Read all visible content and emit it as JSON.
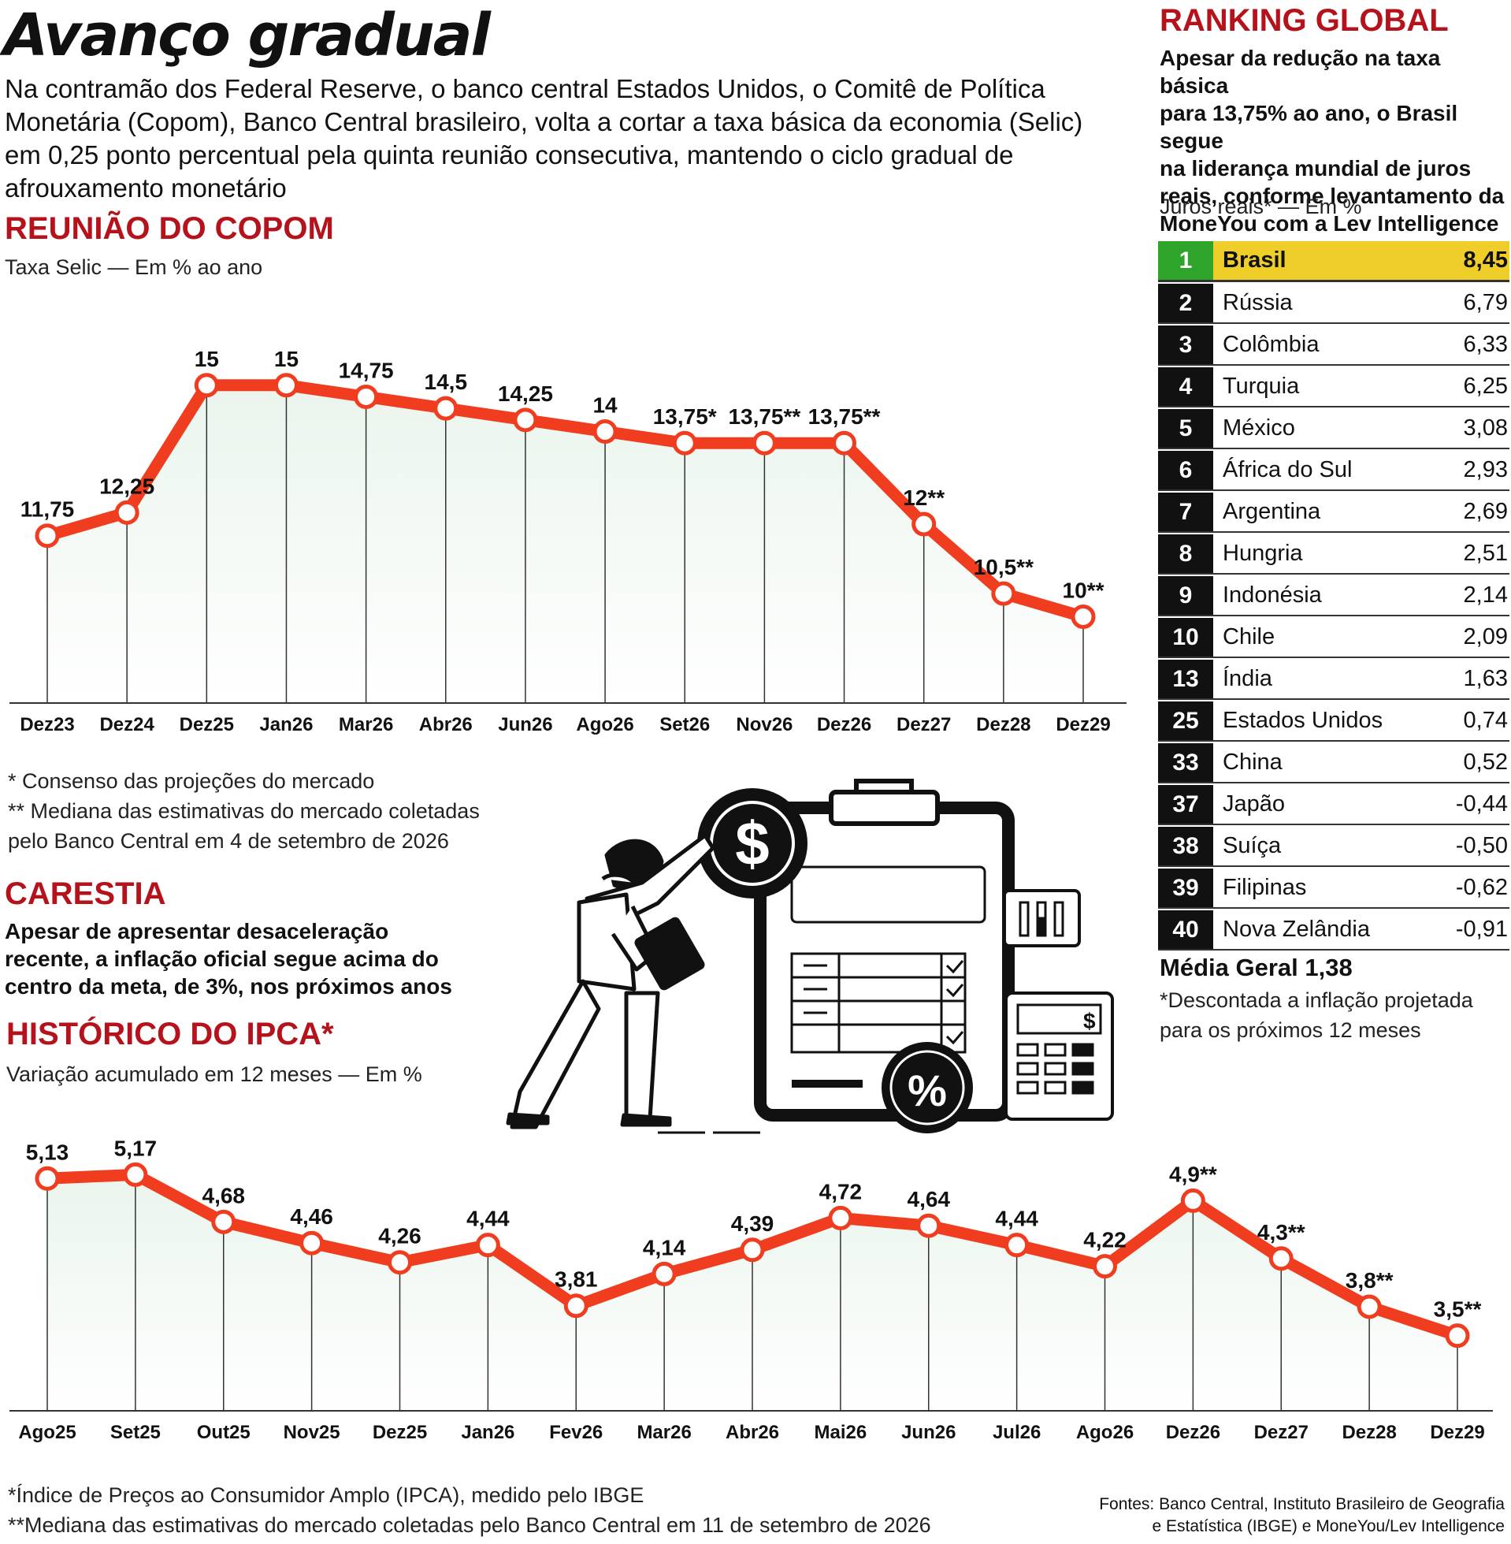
{
  "header": {
    "title": "Avanço gradual",
    "intro": "Na contramão dos Federal Reserve, o banco central Estados Unidos, o Comitê de Política Monetária (Copom), Banco Central brasileiro, volta a cortar a taxa básica da economia (Selic) em 0,25 ponto percentual pela quinta reunião consecutiva, mantendo o ciclo gradual de afrouxamento monetário"
  },
  "copom": {
    "title": "REUNIÃO DO COPOM",
    "subtitle": "Taxa Selic — Em % ao ano",
    "note1": "* Consenso das projeções do mercado",
    "note2": "** Mediana das estimativas do mercado coletadas",
    "note3": "pelo Banco Central em 4 de setembro de 2026"
  },
  "carestia": {
    "title": "CARESTIA",
    "text1": "Apesar de apresentar desaceleração",
    "text2": "recente, a inflação oficial segue acima do",
    "text3": "centro da meta, de 3%, nos próximos anos"
  },
  "ipca": {
    "title": "HISTÓRICO DO IPCA*",
    "subtitle": "Variação acumulado em 12 meses — Em %",
    "note1": "*Índice de Preços ao Consumidor Amplo (IPCA), medido pelo IBGE",
    "note2": "**Mediana das estimativas do mercado coletadas pelo Banco Central em 11 de setembro de 2026"
  },
  "ranking": {
    "title": "RANKING GLOBAL",
    "desc1": "Apesar da redução na taxa básica",
    "desc2": "para 13,75% ao ano, o Brasil segue",
    "desc3": "na liderança mundial de juros",
    "desc4": "reais, conforme levantamento da",
    "desc5": "MoneYou com a Lev Intelligence",
    "subtitle": "Juros reais* — Em %",
    "rows": [
      {
        "rank": "1",
        "country": "Brasil",
        "value": "8,45"
      },
      {
        "rank": "2",
        "country": "Rússia",
        "value": "6,79"
      },
      {
        "rank": "3",
        "country": "Colômbia",
        "value": "6,33"
      },
      {
        "rank": "4",
        "country": "Turquia",
        "value": "6,25"
      },
      {
        "rank": "5",
        "country": "México",
        "value": "3,08"
      },
      {
        "rank": "6",
        "country": "África do Sul",
        "value": "2,93"
      },
      {
        "rank": "7",
        "country": "Argentina",
        "value": "2,69"
      },
      {
        "rank": "8",
        "country": "Hungria",
        "value": "2,51"
      },
      {
        "rank": "9",
        "country": "Indonésia",
        "value": "2,14"
      },
      {
        "rank": "10",
        "country": "Chile",
        "value": "2,09"
      },
      {
        "rank": "13",
        "country": "Índia",
        "value": "1,63"
      },
      {
        "rank": "25",
        "country": "Estados Unidos",
        "value": "0,74"
      },
      {
        "rank": "33",
        "country": "China",
        "value": "0,52"
      },
      {
        "rank": "37",
        "country": "Japão",
        "value": "-0,44"
      },
      {
        "rank": "38",
        "country": "Suíça",
        "value": "-0,50"
      },
      {
        "rank": "39",
        "country": "Filipinas",
        "value": "-0,62"
      },
      {
        "rank": "40",
        "country": "Nova Zelândia",
        "value": "-0,91"
      }
    ],
    "average": "Média Geral 1,38",
    "footnote1": "*Descontada a inflação projetada",
    "footnote2": "para os próximos 12 meses"
  },
  "sources": {
    "line1": "Fontes: Banco Central, Instituto Brasileiro de Geografia",
    "line2": "e Estatística (IBGE) e MoneYou/Lev Intelligence"
  },
  "illustration": {
    "dollar_sign": "$",
    "percent_sign": "%",
    "calc_dollar": "$"
  },
  "colors": {
    "line": "#f03c1f",
    "title_red": "#b5121b",
    "highlight": "#f0ce2a",
    "rank_first": "#2ea52a"
  },
  "chart_data": [
    {
      "type": "line",
      "title": "REUNIÃO DO COPOM",
      "subtitle": "Taxa Selic — Em % ao ano",
      "x": [
        "Dez23",
        "Dez24",
        "Dez25",
        "Jan26",
        "Mar26",
        "Abr26",
        "Jun26",
        "Ago26",
        "Set26",
        "Nov26",
        "Dez26",
        "Dez27",
        "Dez28",
        "Dez29"
      ],
      "values": [
        11.75,
        12.25,
        15,
        15,
        14.75,
        14.5,
        14.25,
        14,
        13.75,
        13.75,
        13.75,
        12,
        10.5,
        10
      ],
      "labels": [
        "11,75",
        "12,25",
        "15",
        "15",
        "14,75",
        "14,5",
        "14,25",
        "14",
        "13,75*",
        "13,75**",
        "13,75**",
        "12**",
        "10,5**",
        "10**"
      ],
      "ylim": [
        8,
        16
      ],
      "grid": false
    },
    {
      "type": "line",
      "title": "HISTÓRICO DO IPCA*",
      "subtitle": "Variação acumulado em 12 meses — Em %",
      "x": [
        "Ago25",
        "Set25",
        "Out25",
        "Nov25",
        "Dez25",
        "Jan26",
        "Fev26",
        "Mar26",
        "Abr26",
        "Mai26",
        "Jun26",
        "Jul26",
        "Ago26",
        "Dez26",
        "Dez27",
        "Dez28",
        "Dez29"
      ],
      "values": [
        5.13,
        5.17,
        4.68,
        4.46,
        4.26,
        4.44,
        3.81,
        4.14,
        4.39,
        4.72,
        4.64,
        4.44,
        4.22,
        4.9,
        4.3,
        3.8,
        3.5
      ],
      "labels": [
        "5,13",
        "5,17",
        "4,68",
        "4,46",
        "4,26",
        "4,44",
        "3,81",
        "4,14",
        "4,39",
        "4,72",
        "4,64",
        "4,44",
        "4,22",
        "4,9**",
        "4,3**",
        "3,8**",
        "3,5**"
      ],
      "ylim": [
        2.5,
        5.5
      ],
      "grid": false
    }
  ]
}
